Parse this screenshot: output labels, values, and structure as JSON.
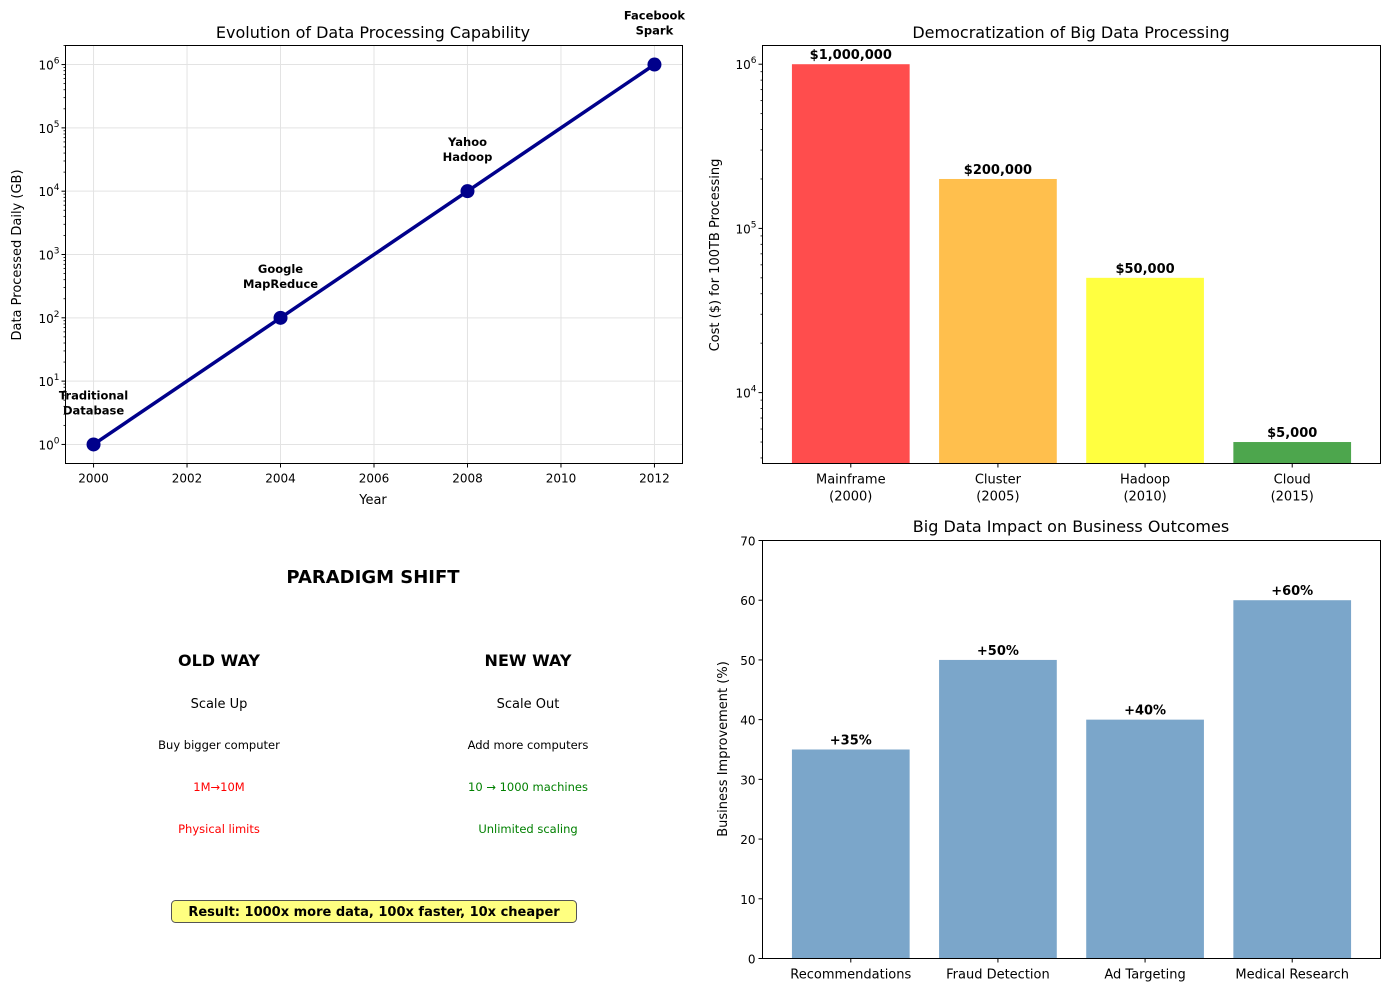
{
  "chart_data": [
    {
      "type": "line",
      "title": "Evolution of Data Processing Capability",
      "xlabel": "Year",
      "ylabel": "Data Processed Daily (GB)",
      "y_scale": "log",
      "xlim": [
        1999.4,
        2012.6
      ],
      "ylim": [
        0.5,
        2000000
      ],
      "grid": true,
      "x_ticks": [
        "2000",
        "2002",
        "2004",
        "2006",
        "2008",
        "2010",
        "2012"
      ],
      "x_tick_values": [
        2000,
        2002,
        2004,
        2006,
        2008,
        2010,
        2012
      ],
      "y_tick_exponents": [
        0,
        1,
        2,
        3,
        4,
        5,
        6
      ],
      "y_tick_base": "10",
      "line_color": "#00008b",
      "x": [
        2000,
        2004,
        2008,
        2012
      ],
      "y": [
        1,
        100,
        10000,
        1000000
      ],
      "annotations": [
        {
          "line1": "Traditional",
          "line2": "Database"
        },
        {
          "line1": "Google",
          "line2": "MapReduce"
        },
        {
          "line1": "Yahoo",
          "line2": "Hadoop"
        },
        {
          "line1": "Facebook",
          "line2": "Spark"
        }
      ]
    },
    {
      "type": "bar",
      "title": "Democratization of Big Data Processing",
      "xlabel": "",
      "ylabel": "Cost ($) for 100TB Processing",
      "y_scale": "log",
      "ylim": [
        3700,
        1300000
      ],
      "grid": false,
      "y_tick_exponents": [
        4,
        5,
        6
      ],
      "y_tick_base": "10",
      "categories": [
        {
          "line1": "Mainframe",
          "line2": "(2000)"
        },
        {
          "line1": "Cluster",
          "line2": "(2005)"
        },
        {
          "line1": "Hadoop",
          "line2": "(2010)"
        },
        {
          "line1": "Cloud",
          "line2": "(2015)"
        }
      ],
      "values": [
        1000000,
        200000,
        50000,
        5000
      ],
      "value_labels": [
        "$1,000,000",
        "$200,000",
        "$50,000",
        "$5,000"
      ],
      "colors": [
        "#ff4d4d",
        "#ffbf4d",
        "#ffff40",
        "#4da64d"
      ]
    },
    {
      "type": "bar",
      "title": "Big Data Impact on Business Outcomes",
      "xlabel": "",
      "ylabel": "Business Improvement (%)",
      "ylim": [
        0,
        70
      ],
      "grid": false,
      "y_ticks": [
        "0",
        "10",
        "20",
        "30",
        "40",
        "50",
        "60",
        "70"
      ],
      "y_tick_values": [
        0,
        10,
        20,
        30,
        40,
        50,
        60,
        70
      ],
      "categories": [
        "Recommendations",
        "Fraud Detection",
        "Ad Targeting",
        "Medical Research"
      ],
      "values": [
        35,
        50,
        40,
        60
      ],
      "value_labels": [
        "+35%",
        "+50%",
        "+40%",
        "+60%"
      ],
      "colors": [
        "#7ba6ca"
      ]
    }
  ],
  "paradigm": {
    "title": "PARADIGM SHIFT",
    "old": {
      "heading": "OLD WAY",
      "line1": "Scale Up",
      "line2": "Buy bigger computer",
      "line3": "1M→10M",
      "line4": "Physical limits"
    },
    "new": {
      "heading": "NEW WAY",
      "line1": "Scale Out",
      "line2": "Add more computers",
      "line3": "10 → 1000 machines",
      "line4": "Unlimited scaling"
    },
    "result": "Result: 1000x more data, 100x faster, 10x cheaper",
    "colors": {
      "old": "#ff0000",
      "new": "#008000",
      "result_bg": "#ffff80"
    }
  }
}
